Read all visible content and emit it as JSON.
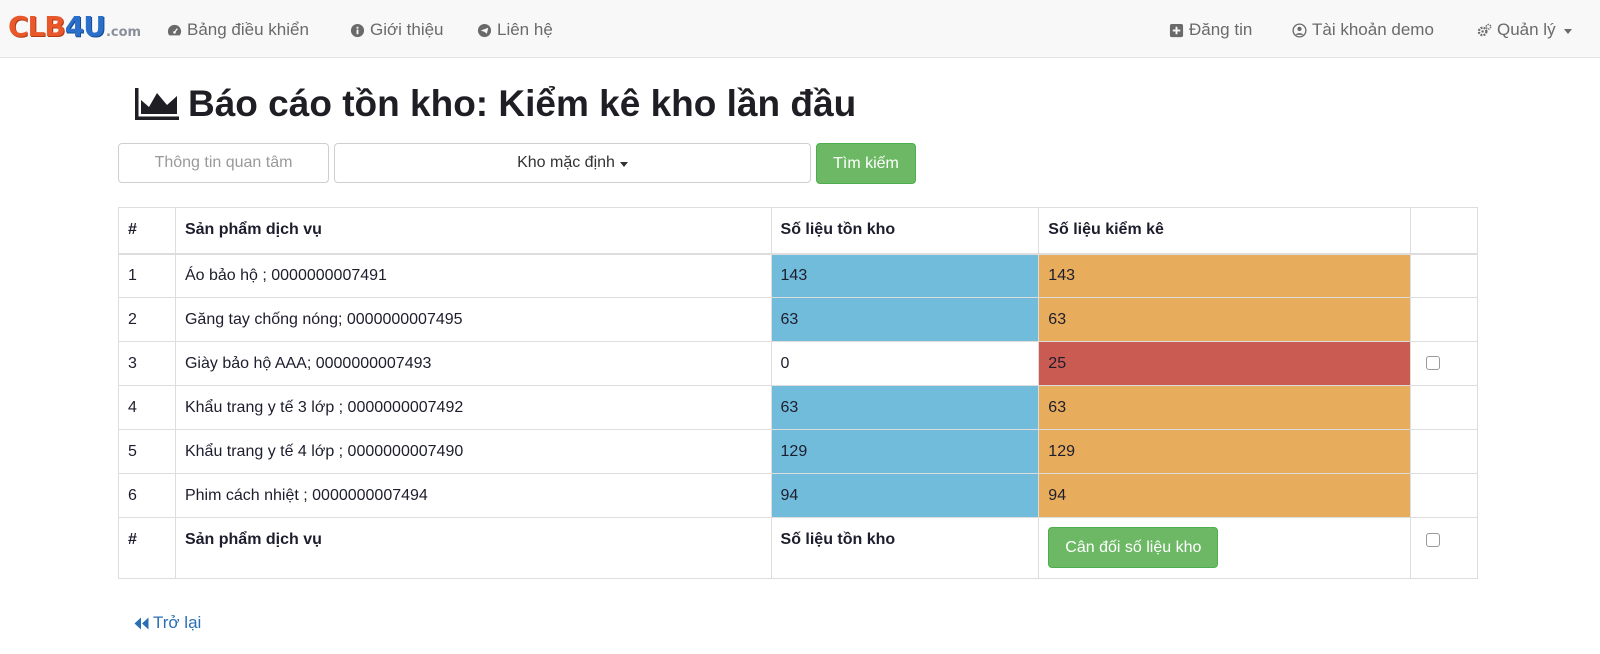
{
  "brand": {
    "part1": "CLB",
    "part2": "4U",
    "part3": ".com"
  },
  "nav": {
    "dashboard": "Bảng điều khiển",
    "about": "Giới thiệu",
    "contact": "Liên hệ",
    "post": "Đăng tin",
    "account": "Tài khoản demo",
    "manage": "Quản lý"
  },
  "page": {
    "title": "Báo cáo tồn kho: Kiểm kê kho lần đầu"
  },
  "search": {
    "placeholder": "Thông tin quan tâm",
    "warehouse": "Kho mặc định",
    "button": "Tìm kiếm"
  },
  "table": {
    "headers": [
      "#",
      "Sản phẩm dịch vụ",
      "Số liệu tồn kho",
      "Số liệu kiểm kê"
    ],
    "rows": [
      {
        "no": "1",
        "product": "Áo bảo hộ ; 0000000007491",
        "stock": "143",
        "count": "143"
      },
      {
        "no": "2",
        "product": "Găng tay chống nóng; 0000000007495",
        "stock": "63",
        "count": "63"
      },
      {
        "no": "3",
        "product": "Giày bảo hộ AAA; 0000000007493",
        "stock": "0",
        "count": "25"
      },
      {
        "no": "4",
        "product": "Khẩu trang y tế 3 lớp ; 0000000007492",
        "stock": "63",
        "count": "63"
      },
      {
        "no": "5",
        "product": "Khẩu trang y tế 4 lớp ; 0000000007490",
        "stock": "129",
        "count": "129"
      },
      {
        "no": "6",
        "product": "Phim cách nhiệt ; 0000000007494",
        "stock": "94",
        "count": "94"
      }
    ],
    "footer": {
      "no": "#",
      "product": "Sản phẩm dịch vụ",
      "stock": "Số liệu tồn kho",
      "balance_button": "Cân đối số liệu kho"
    }
  },
  "back": {
    "label": "Trở lại"
  },
  "colors": {
    "info": "#72bcdb",
    "warning": "#e8ad5c",
    "danger": "#ca5b53",
    "success": "#6cb864",
    "link": "#2a6fb5"
  }
}
